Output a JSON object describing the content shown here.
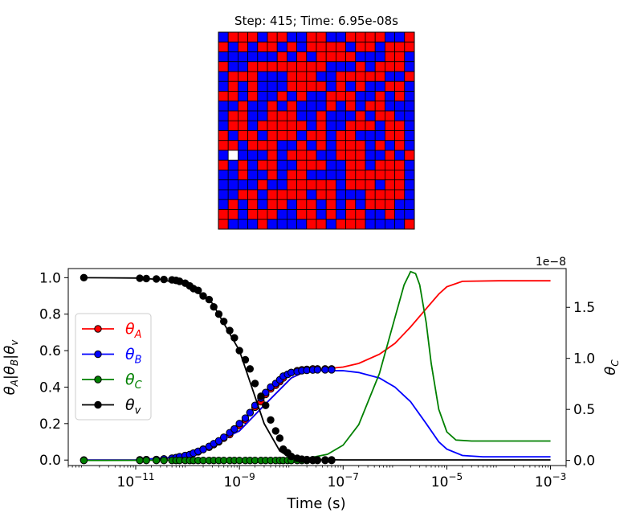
{
  "lattice": {
    "title": "Step: 415; Time: 6.95e-08s",
    "size": 20,
    "colors": {
      "A": "#ff0000",
      "B": "#0000ff",
      "vacancy": "#ffffff",
      "edge": "#000000"
    },
    "rows": [
      "BAAABAABBAABBAAAABBA",
      "ABABAABABAAAABAABAAA",
      "BBBBBBABABAAAABBBAAB",
      "ABBAAAAAAAABBBABAAAB",
      "BAAABBBAAABBAAAAABBA",
      "BABABBBAAAABABABBAAB",
      "AABABBABABBAAABBABAB",
      "BBABBABABBBABABAABBB",
      "BAABBAAABBABBBABAABB",
      "BAABAAAAABABBAAABAAB",
      "ABAABAAABAABAABBBAAB",
      "AABAAABBABABAAABABAB",
      "BVBBBABAAABBAAABBABA",
      "ABABAABBAAABBAABAAAB",
      "BBABBABAABBBBAAAAAAB",
      "BBBBABBAAAAABAAABAAB",
      "BBAABAAAABAABBBAAAAB",
      "BABABAABAABABABAAABB",
      "AABAAABBAABABAABBABB",
      "ABBBABBBBAABAAABBBBA"
    ]
  },
  "chart_data": {
    "type": "line",
    "xlabel": "Time (s)",
    "ylabel_left": "θ_A|θ_B|θ_v",
    "ylabel_right": "θ_C",
    "xscale": "log",
    "xlim": [
      5e-13,
      0.002
    ],
    "ylim_left": [
      -0.03,
      1.05
    ],
    "ylim_right": [
      -0.05,
      1.88
    ],
    "right_axis_multiplier": "1e−8",
    "xticks": [
      {
        "value": 1e-11,
        "label": "10",
        "exp": "−11"
      },
      {
        "value": 1e-09,
        "label": "10",
        "exp": "−9"
      },
      {
        "value": 1e-07,
        "label": "10",
        "exp": "−7"
      },
      {
        "value": 1e-05,
        "label": "10",
        "exp": "−5"
      },
      {
        "value": 0.001,
        "label": "10",
        "exp": "−3"
      }
    ],
    "yticks_left": [
      "0.0",
      "0.2",
      "0.4",
      "0.6",
      "0.8",
      "1.0"
    ],
    "yticks_right": [
      "0.0",
      "0.5",
      "1.0",
      "1.5"
    ],
    "legend_position": "center-left",
    "series": [
      {
        "name": "θ",
        "sub": "A",
        "axis": "left",
        "color": "#ff0000",
        "line": [
          [
            1e-12,
            0
          ],
          [
            1e-11,
            0.001
          ],
          [
            1e-10,
            0.02
          ],
          [
            1e-09,
            0.16
          ],
          [
            3e-09,
            0.3
          ],
          [
            1e-08,
            0.45
          ],
          [
            2e-08,
            0.49
          ],
          [
            1e-07,
            0.51
          ],
          [
            2e-07,
            0.53
          ],
          [
            5e-07,
            0.58
          ],
          [
            1e-06,
            0.64
          ],
          [
            2e-06,
            0.73
          ],
          [
            4e-06,
            0.83
          ],
          [
            7e-06,
            0.91
          ],
          [
            1e-05,
            0.95
          ],
          [
            2e-05,
            0.98
          ],
          [
            0.0001,
            0.983
          ],
          [
            0.001,
            0.983
          ]
        ],
        "markers": [
          [
            1e-12,
            0
          ],
          [
            1.2e-11,
            0.001
          ],
          [
            1.6e-11,
            0.002
          ],
          [
            2.5e-11,
            0.003
          ],
          [
            3.5e-11,
            0.006
          ],
          [
            5e-11,
            0.01
          ],
          [
            6e-11,
            0.013
          ],
          [
            7e-11,
            0.018
          ],
          [
            9e-11,
            0.025
          ],
          [
            1.1e-10,
            0.03
          ],
          [
            1.3e-10,
            0.038
          ],
          [
            1.6e-10,
            0.045
          ],
          [
            2e-10,
            0.06
          ],
          [
            2.6e-10,
            0.07
          ],
          [
            3.2e-10,
            0.085
          ],
          [
            4e-10,
            0.1
          ],
          [
            5e-10,
            0.12
          ],
          [
            6.5e-10,
            0.14
          ],
          [
            8e-10,
            0.17
          ],
          [
            1e-09,
            0.19
          ],
          [
            1.3e-09,
            0.22
          ],
          [
            1.6e-09,
            0.26
          ],
          [
            2e-09,
            0.29
          ],
          [
            2.6e-09,
            0.32
          ],
          [
            3.2e-09,
            0.36
          ],
          [
            4e-09,
            0.39
          ],
          [
            5e-09,
            0.41
          ],
          [
            6e-09,
            0.43
          ],
          [
            7e-09,
            0.45
          ],
          [
            8.5e-09,
            0.47
          ],
          [
            1e-08,
            0.48
          ],
          [
            1.3e-08,
            0.49
          ],
          [
            1.6e-08,
            0.495
          ],
          [
            2e-08,
            0.497
          ],
          [
            2.6e-08,
            0.5
          ],
          [
            3.2e-08,
            0.5
          ],
          [
            4.5e-08,
            0.5
          ],
          [
            6e-08,
            0.5
          ]
        ]
      },
      {
        "name": "θ",
        "sub": "B",
        "axis": "left",
        "color": "#0000ff",
        "line": [
          [
            1e-12,
            0
          ],
          [
            1e-11,
            0.001
          ],
          [
            1e-10,
            0.02
          ],
          [
            1e-09,
            0.16
          ],
          [
            3e-09,
            0.3
          ],
          [
            1e-08,
            0.45
          ],
          [
            2e-08,
            0.49
          ],
          [
            1e-07,
            0.49
          ],
          [
            2e-07,
            0.48
          ],
          [
            5e-07,
            0.45
          ],
          [
            1e-06,
            0.4
          ],
          [
            2e-06,
            0.32
          ],
          [
            4e-06,
            0.2
          ],
          [
            7e-06,
            0.1
          ],
          [
            1e-05,
            0.06
          ],
          [
            2e-05,
            0.025
          ],
          [
            5e-05,
            0.018
          ],
          [
            0.0001,
            0.018
          ],
          [
            0.001,
            0.018
          ]
        ],
        "markers": [
          [
            1e-12,
            0
          ],
          [
            1.2e-11,
            0.001
          ],
          [
            1.6e-11,
            0.002
          ],
          [
            2.5e-11,
            0.003
          ],
          [
            3.5e-11,
            0.006
          ],
          [
            5e-11,
            0.01
          ],
          [
            6e-11,
            0.013
          ],
          [
            7e-11,
            0.018
          ],
          [
            9e-11,
            0.025
          ],
          [
            1.1e-10,
            0.03
          ],
          [
            1.3e-10,
            0.038
          ],
          [
            1.6e-10,
            0.048
          ],
          [
            2e-10,
            0.058
          ],
          [
            2.6e-10,
            0.075
          ],
          [
            3.2e-10,
            0.09
          ],
          [
            4e-10,
            0.105
          ],
          [
            5e-10,
            0.125
          ],
          [
            6.5e-10,
            0.15
          ],
          [
            8e-10,
            0.17
          ],
          [
            1e-09,
            0.2
          ],
          [
            1.3e-09,
            0.23
          ],
          [
            1.6e-09,
            0.26
          ],
          [
            2e-09,
            0.3
          ],
          [
            2.6e-09,
            0.34
          ],
          [
            3.2e-09,
            0.37
          ],
          [
            4e-09,
            0.4
          ],
          [
            5e-09,
            0.42
          ],
          [
            6e-09,
            0.44
          ],
          [
            7e-09,
            0.46
          ],
          [
            8.5e-09,
            0.47
          ],
          [
            1e-08,
            0.48
          ],
          [
            1.3e-08,
            0.485
          ],
          [
            1.6e-08,
            0.49
          ],
          [
            2e-08,
            0.492
          ],
          [
            2.6e-08,
            0.494
          ],
          [
            3.2e-08,
            0.495
          ],
          [
            4.5e-08,
            0.495
          ],
          [
            6e-08,
            0.495
          ]
        ]
      },
      {
        "name": "θ",
        "sub": "C",
        "axis": "right",
        "color": "#008000",
        "line": [
          [
            1e-12,
            0
          ],
          [
            1e-08,
            0.005
          ],
          [
            2e-08,
            0.02
          ],
          [
            5e-08,
            0.06
          ],
          [
            1e-07,
            0.15
          ],
          [
            2e-07,
            0.35
          ],
          [
            5e-07,
            0.85
          ],
          [
            1e-06,
            1.4
          ],
          [
            1.5e-06,
            1.72
          ],
          [
            2e-06,
            1.85
          ],
          [
            2.5e-06,
            1.83
          ],
          [
            3e-06,
            1.72
          ],
          [
            4e-06,
            1.35
          ],
          [
            5e-06,
            0.95
          ],
          [
            7e-06,
            0.5
          ],
          [
            1e-05,
            0.28
          ],
          [
            1.5e-05,
            0.2
          ],
          [
            3e-05,
            0.19
          ],
          [
            0.0001,
            0.19
          ],
          [
            0.001,
            0.19
          ]
        ],
        "markers": [
          [
            1e-12,
            0
          ],
          [
            1.2e-11,
            0
          ],
          [
            1.6e-11,
            0
          ],
          [
            2.5e-11,
            0
          ],
          [
            3.5e-11,
            0
          ],
          [
            5e-11,
            0
          ],
          [
            6e-11,
            0
          ],
          [
            7e-11,
            0
          ],
          [
            9e-11,
            0
          ],
          [
            1.1e-10,
            0
          ],
          [
            1.3e-10,
            0
          ],
          [
            1.6e-10,
            0
          ],
          [
            2e-10,
            0
          ],
          [
            2.6e-10,
            0
          ],
          [
            3.2e-10,
            0
          ],
          [
            4e-10,
            0
          ],
          [
            5e-10,
            0
          ],
          [
            6.5e-10,
            0
          ],
          [
            8e-10,
            0
          ],
          [
            1e-09,
            0
          ],
          [
            1.3e-09,
            0
          ],
          [
            1.6e-09,
            0
          ],
          [
            2e-09,
            0
          ],
          [
            2.6e-09,
            0
          ],
          [
            3.2e-09,
            0
          ],
          [
            4e-09,
            0
          ],
          [
            5e-09,
            0
          ],
          [
            6e-09,
            0
          ],
          [
            7e-09,
            0
          ],
          [
            8.5e-09,
            0
          ],
          [
            1e-08,
            0
          ],
          [
            1.3e-08,
            0
          ],
          [
            1.6e-08,
            0
          ],
          [
            2e-08,
            0
          ],
          [
            2.6e-08,
            0
          ],
          [
            3.2e-08,
            0
          ],
          [
            4.5e-08,
            0
          ],
          [
            6e-08,
            0
          ]
        ]
      },
      {
        "name": "θ",
        "sub": "v",
        "axis": "left",
        "color": "#000000",
        "line": [
          [
            1e-12,
            1
          ],
          [
            1e-11,
            0.998
          ],
          [
            3e-11,
            0.99
          ],
          [
            1e-10,
            0.96
          ],
          [
            3e-10,
            0.86
          ],
          [
            1e-09,
            0.6
          ],
          [
            3e-09,
            0.2
          ],
          [
            6e-09,
            0.05
          ],
          [
            1e-08,
            0.01
          ],
          [
            2e-08,
            0.003
          ],
          [
            1e-07,
            0.001
          ],
          [
            0.001,
            0.001
          ]
        ],
        "markers": [
          [
            1e-12,
            1
          ],
          [
            1.2e-11,
            0.997
          ],
          [
            1.6e-11,
            0.995
          ],
          [
            2.5e-11,
            0.993
          ],
          [
            3.5e-11,
            0.99
          ],
          [
            5e-11,
            0.988
          ],
          [
            6e-11,
            0.985
          ],
          [
            7e-11,
            0.98
          ],
          [
            9e-11,
            0.97
          ],
          [
            1.1e-10,
            0.955
          ],
          [
            1.3e-10,
            0.94
          ],
          [
            1.6e-10,
            0.93
          ],
          [
            2e-10,
            0.9
          ],
          [
            2.6e-10,
            0.88
          ],
          [
            3.2e-10,
            0.84
          ],
          [
            4e-10,
            0.8
          ],
          [
            5e-10,
            0.76
          ],
          [
            6.5e-10,
            0.71
          ],
          [
            8e-10,
            0.67
          ],
          [
            1e-09,
            0.6
          ],
          [
            1.3e-09,
            0.55
          ],
          [
            1.6e-09,
            0.5
          ],
          [
            2e-09,
            0.42
          ],
          [
            2.6e-09,
            0.35
          ],
          [
            3.2e-09,
            0.3
          ],
          [
            4e-09,
            0.22
          ],
          [
            5e-09,
            0.16
          ],
          [
            6e-09,
            0.12
          ],
          [
            7e-09,
            0.06
          ],
          [
            8.5e-09,
            0.04
          ],
          [
            1e-08,
            0.02
          ],
          [
            1.3e-08,
            0.01
          ],
          [
            1.6e-08,
            0.005
          ],
          [
            2e-08,
            0.003
          ],
          [
            2.6e-08,
            0.002
          ],
          [
            3.2e-08,
            0.001
          ],
          [
            4.5e-08,
            0.001
          ],
          [
            6e-08,
            0.001
          ]
        ]
      }
    ]
  }
}
